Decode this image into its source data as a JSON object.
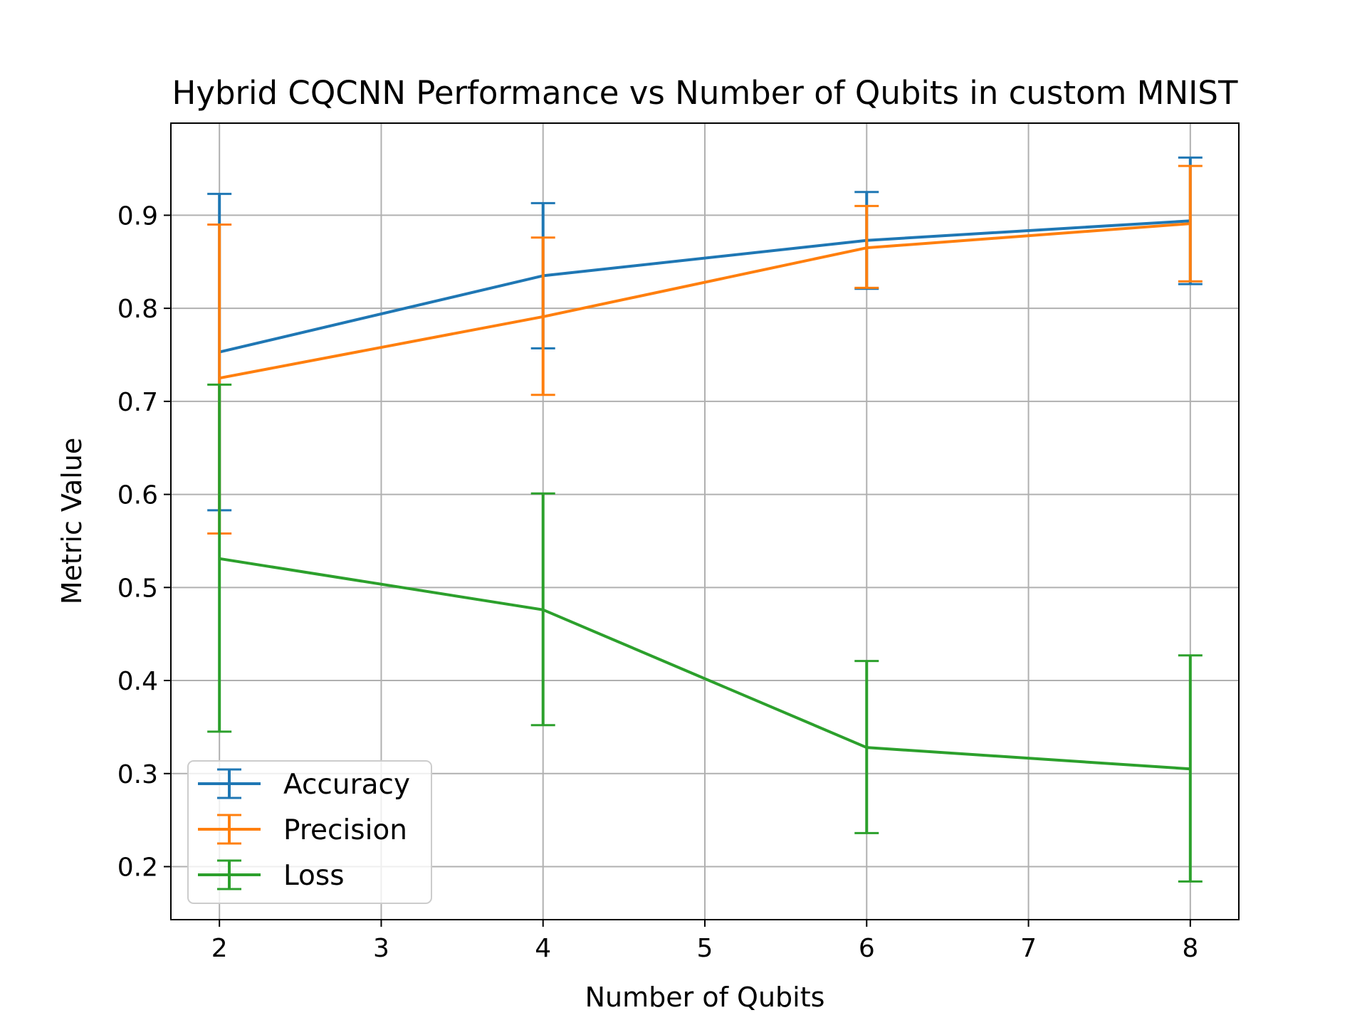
{
  "chart_data": {
    "type": "line",
    "title": "Hybrid CQCNN Performance vs Number of Qubits in custom MNIST",
    "xlabel": "Number of Qubits",
    "ylabel": "Metric Value",
    "x": [
      2,
      4,
      6,
      8
    ],
    "xticks": [
      2,
      3,
      4,
      5,
      6,
      7,
      8
    ],
    "yticks": [
      0.2,
      0.3,
      0.4,
      0.5,
      0.6,
      0.7,
      0.8,
      0.9
    ],
    "xlim": [
      1.7,
      8.3
    ],
    "ylim": [
      0.143,
      0.999
    ],
    "grid": true,
    "legend_position": "lower-left",
    "series": [
      {
        "name": "Accuracy",
        "color": "#1f77b4",
        "values": [
          0.753,
          0.835,
          0.873,
          0.894
        ],
        "err_low": [
          0.583,
          0.757,
          0.821,
          0.826
        ],
        "err_high": [
          0.923,
          0.913,
          0.925,
          0.962
        ]
      },
      {
        "name": "Precision",
        "color": "#ff7f0e",
        "values": [
          0.725,
          0.791,
          0.865,
          0.891
        ],
        "err_low": [
          0.558,
          0.707,
          0.822,
          0.829
        ],
        "err_high": [
          0.89,
          0.876,
          0.91,
          0.953
        ]
      },
      {
        "name": "Loss",
        "color": "#2ca02c",
        "values": [
          0.531,
          0.476,
          0.328,
          0.305
        ],
        "err_low": [
          0.345,
          0.352,
          0.236,
          0.184
        ],
        "err_high": [
          0.718,
          0.601,
          0.421,
          0.427
        ]
      }
    ]
  }
}
